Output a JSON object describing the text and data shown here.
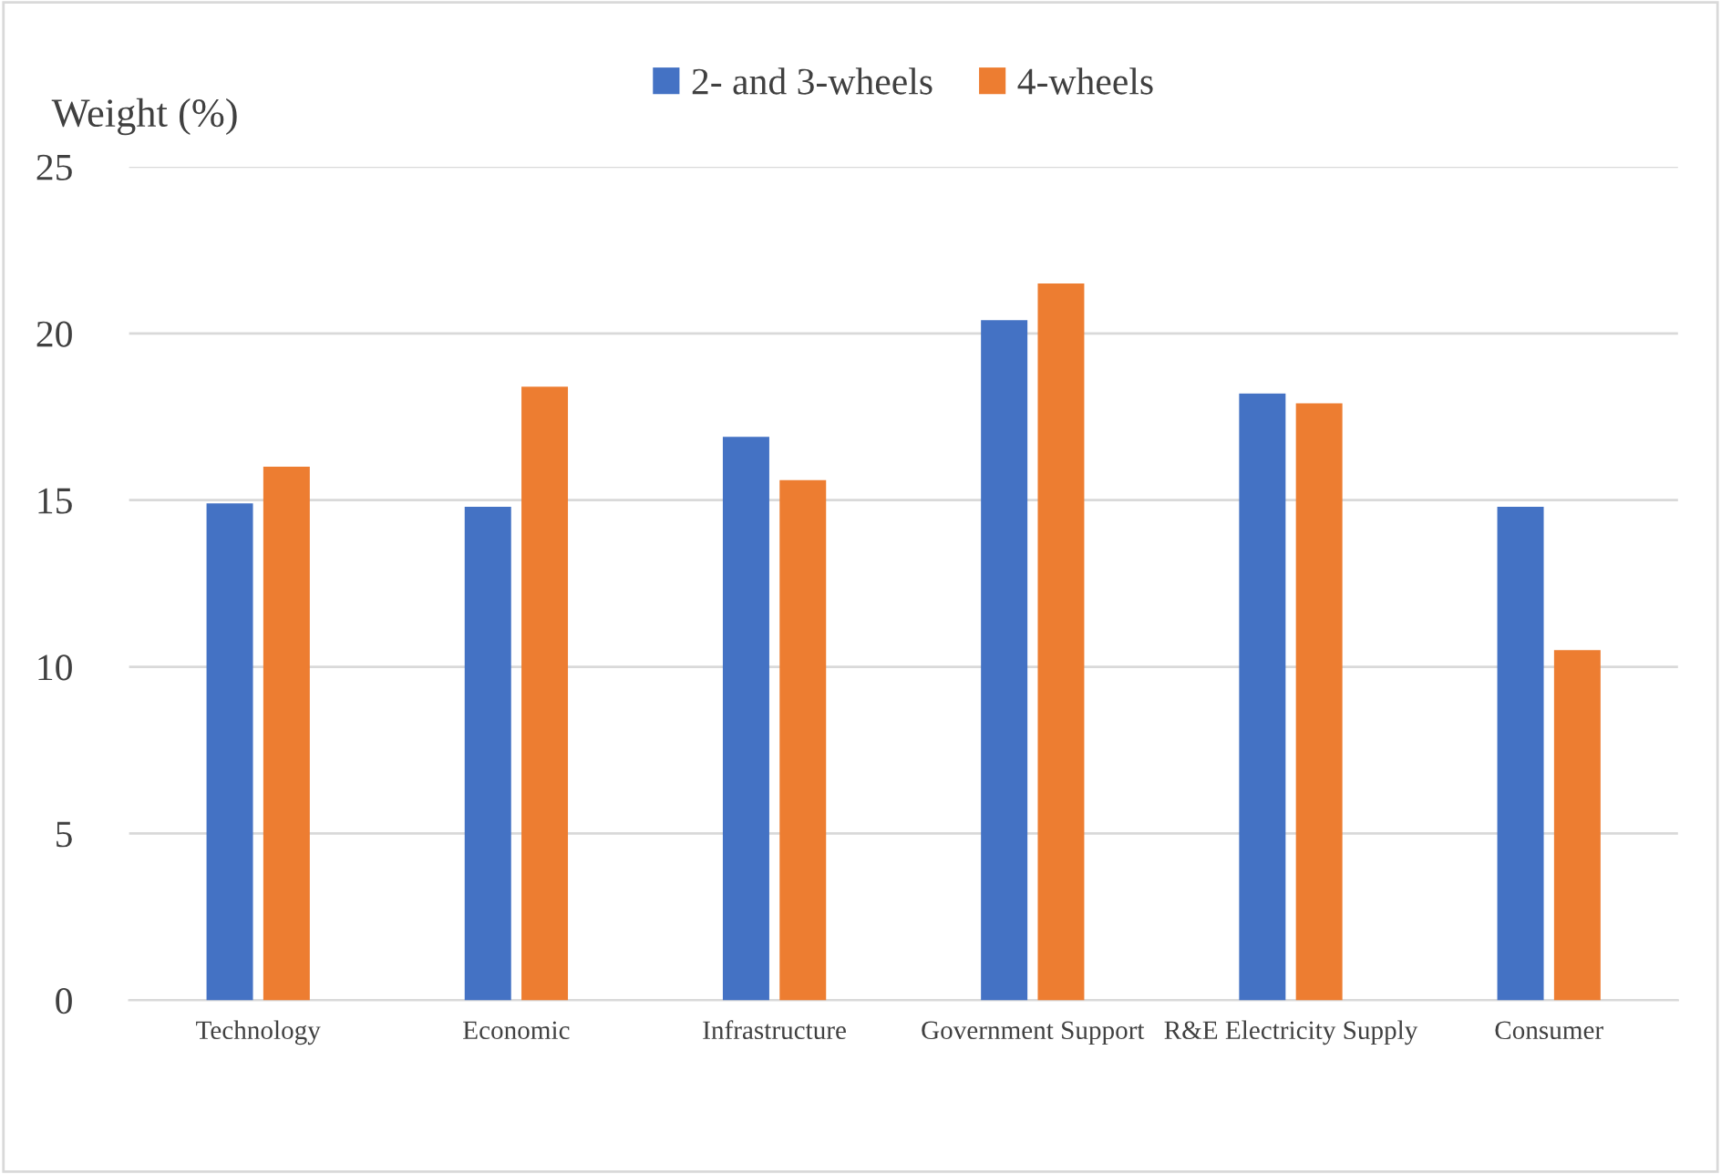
{
  "chart_data": {
    "type": "bar",
    "ylabel": "Weight (%)",
    "categories": [
      "Technology",
      "Economic",
      "Infrastructure",
      "Government Support",
      "R&E Electricity Supply",
      "Consumer"
    ],
    "series": [
      {
        "name": "2- and 3-wheels",
        "color": "#4472c4",
        "values": [
          14.9,
          14.8,
          16.9,
          20.4,
          18.2,
          14.8
        ]
      },
      {
        "name": "4-wheels",
        "color": "#ed7d31",
        "values": [
          16.0,
          18.4,
          15.6,
          21.5,
          17.9,
          10.5
        ]
      }
    ],
    "ylim": [
      0,
      25
    ],
    "yticks": [
      0,
      5,
      10,
      15,
      20,
      25
    ],
    "grid": "y",
    "legend": "top"
  }
}
